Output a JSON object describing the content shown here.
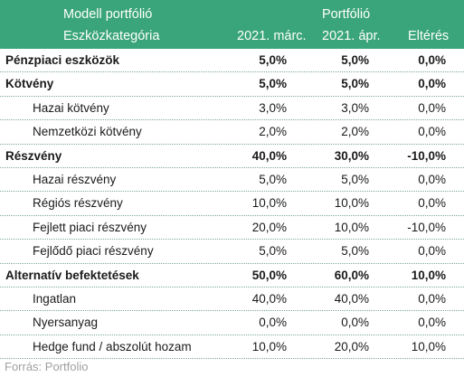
{
  "header": {
    "left_top": "Modell portfólió",
    "left_bottom": "Eszközkategória",
    "group": "Portfólió",
    "col1": "2021. márc.",
    "col2": "2021. ápr.",
    "col3": "Eltérés"
  },
  "rows": [
    {
      "name": "Pénzpiaci eszközök",
      "v1": "5,0%",
      "v2": "5,0%",
      "v3": "0,0%"
    },
    {
      "name": "Kötvény",
      "v1": "5,0%",
      "v2": "5,0%",
      "v3": "0,0%"
    },
    {
      "name": "Hazai kötvény",
      "v1": "3,0%",
      "v2": "3,0%",
      "v3": "0,0%"
    },
    {
      "name": "Nemzetközi kötvény",
      "v1": "2,0%",
      "v2": "2,0%",
      "v3": "0,0%"
    },
    {
      "name": "Részvény",
      "v1": "40,0%",
      "v2": "30,0%",
      "v3": "-10,0%"
    },
    {
      "name": "Hazai részvény",
      "v1": "5,0%",
      "v2": "5,0%",
      "v3": "0,0%"
    },
    {
      "name": "Régiós részvény",
      "v1": "10,0%",
      "v2": "10,0%",
      "v3": "0,0%"
    },
    {
      "name": "Fejlett piaci részvény",
      "v1": "20,0%",
      "v2": "10,0%",
      "v3": "-10,0%"
    },
    {
      "name": "Fejlődő piaci részvény",
      "v1": "5,0%",
      "v2": "5,0%",
      "v3": "0,0%"
    },
    {
      "name": "Alternatív befektetések",
      "v1": "50,0%",
      "v2": "60,0%",
      "v3": "10,0%"
    },
    {
      "name": "Ingatlan",
      "v1": "40,0%",
      "v2": "40,0%",
      "v3": "0,0%"
    },
    {
      "name": "Nyersanyag",
      "v1": "0,0%",
      "v2": "0,0%",
      "v3": "0,0%"
    },
    {
      "name": "Hedge fund / abszolút hozam",
      "v1": "10,0%",
      "v2": "20,0%",
      "v3": "10,0%"
    }
  ],
  "footer": "Forrás: Portfolio",
  "colors": {
    "header_bg": "#3aa57a",
    "header_text": "#ffffff",
    "divider": "#7aa896",
    "footer_text": "#a0a0a0"
  }
}
